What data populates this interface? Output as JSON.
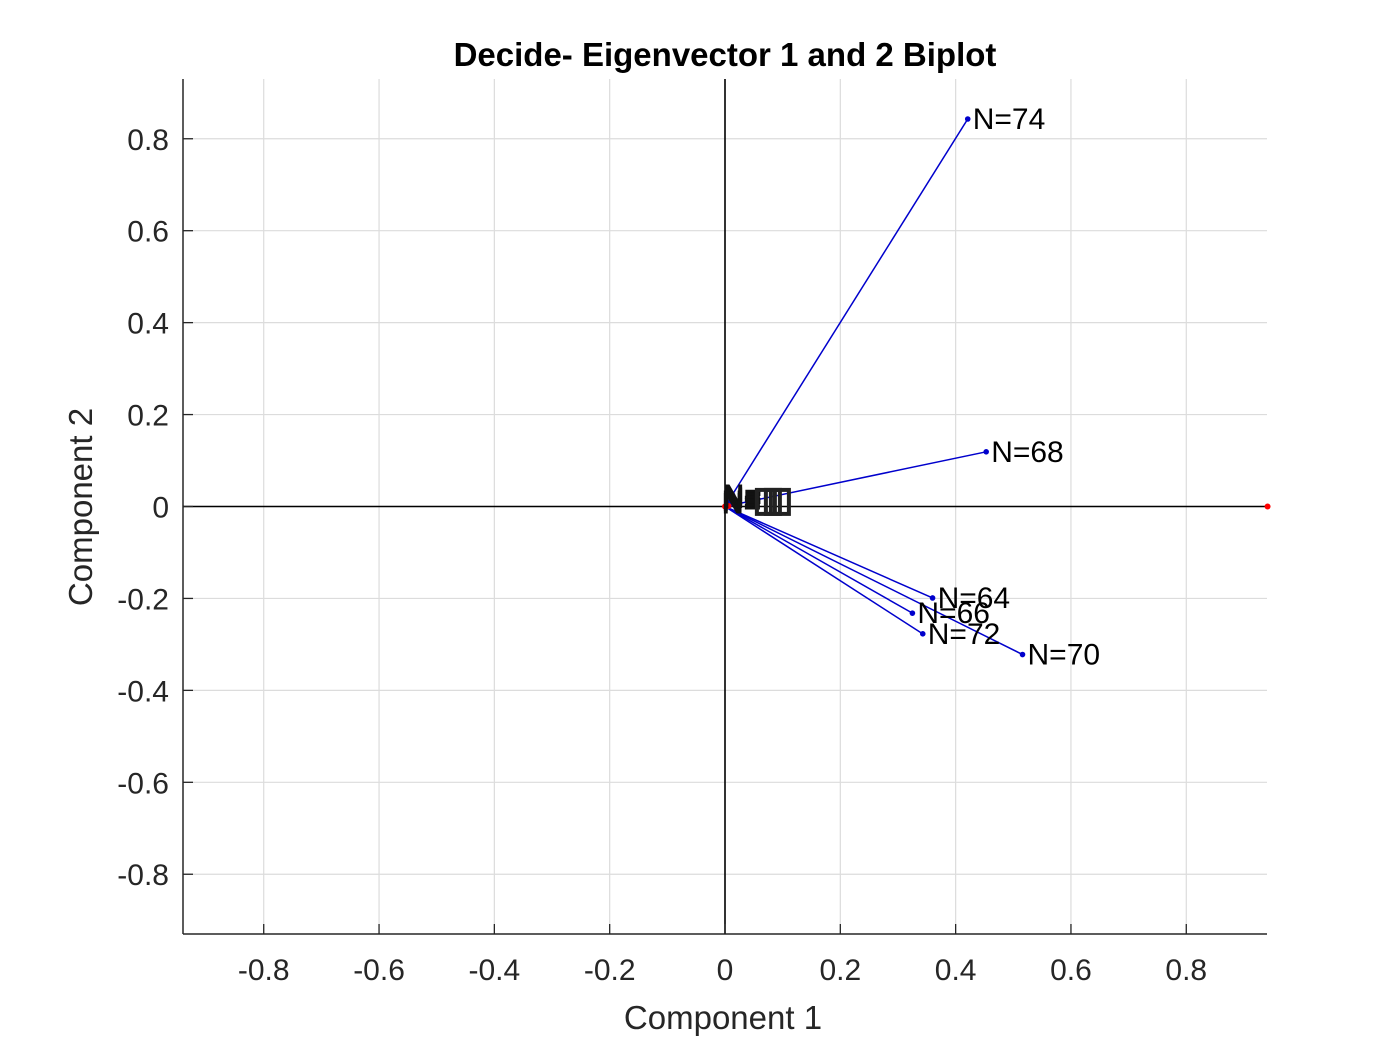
{
  "chart_data": {
    "type": "scatter",
    "title": "Decide- Eigenvector 1 and 2 Biplot",
    "xlabel": "Component 1",
    "ylabel": "Component 2",
    "xlim": [
      -0.94,
      0.94
    ],
    "ylim": [
      -0.93,
      0.93
    ],
    "xticks": [
      -0.8,
      -0.6,
      -0.4,
      -0.2,
      0,
      0.2,
      0.4,
      0.6,
      0.8
    ],
    "yticks": [
      -0.8,
      -0.6,
      -0.4,
      -0.2,
      0,
      0.2,
      0.4,
      0.6,
      0.8
    ],
    "xtick_labels": [
      "-0.8",
      "-0.6",
      "-0.4",
      "-0.2",
      "0",
      "0.2",
      "0.4",
      "0.6",
      "0.8"
    ],
    "ytick_labels": [
      "-0.8",
      "-0.6",
      "-0.4",
      "-0.2",
      "0",
      "0.2",
      "0.4",
      "0.6",
      "0.8"
    ],
    "grid": true,
    "vector_color": "#0000cc",
    "score_color": "#ff0000",
    "vectors": [
      {
        "label": "N=74",
        "x": 0.421,
        "y": 0.843
      },
      {
        "label": "N=68",
        "x": 0.453,
        "y": 0.119
      },
      {
        "label": "N=64",
        "x": 0.36,
        "y": -0.199
      },
      {
        "label": "N=66",
        "x": 0.325,
        "y": -0.232
      },
      {
        "label": "N=72",
        "x": 0.343,
        "y": -0.277
      },
      {
        "label": "N=70",
        "x": 0.516,
        "y": -0.322
      },
      {
        "label": "N=",
        "x": 0.013,
        "y": 0.025
      },
      {
        "label": "N=",
        "x": 0.013,
        "y": 0.018
      },
      {
        "label": "N=",
        "x": 0.012,
        "y": 0.012
      },
      {
        "label": "N=",
        "x": 0.012,
        "y": 0.006
      }
    ],
    "scores": [
      {
        "x": 0.941,
        "y": 0.0
      },
      {
        "x": 0.0,
        "y": 0.0
      },
      {
        "x": 0.003,
        "y": 0.0
      },
      {
        "x": 0.006,
        "y": 0.001
      }
    ]
  }
}
